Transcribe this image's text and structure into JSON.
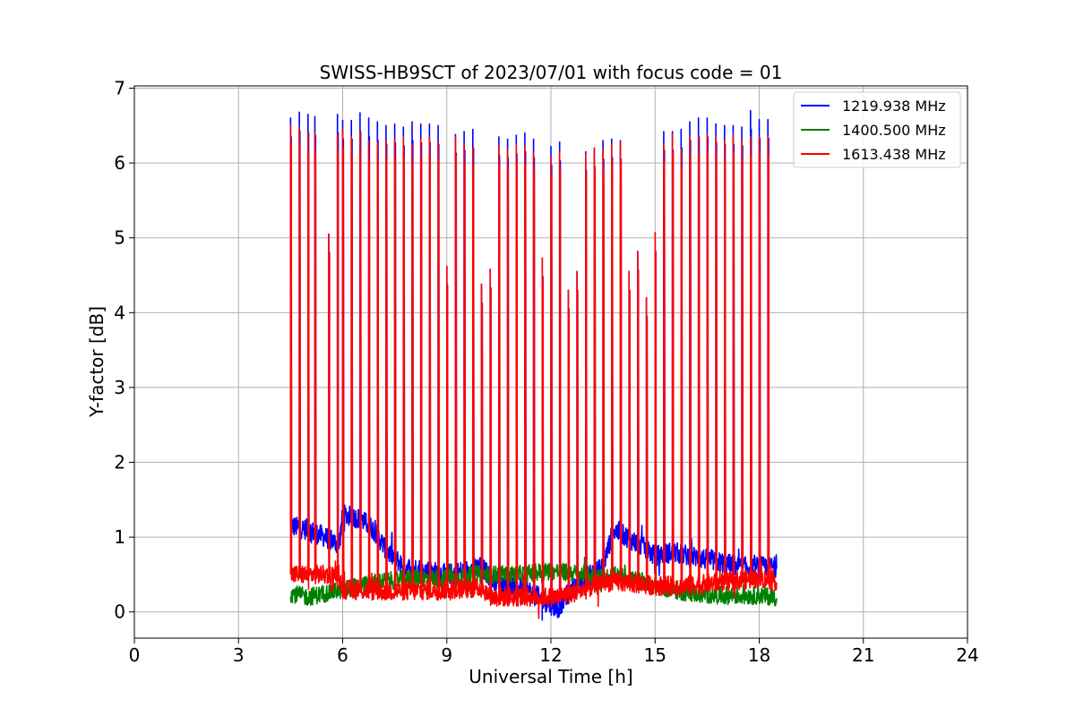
{
  "chart_data": {
    "type": "line",
    "title": "SWISS-HB9SCT of 2023/07/01 with focus code = 01",
    "xlabel": "Universal Time [h]",
    "ylabel": "Y-factor [dB]",
    "xlim": [
      0,
      24
    ],
    "ylim": [
      -0.35,
      7.03
    ],
    "x_ticks": [
      0,
      3,
      6,
      9,
      12,
      15,
      18,
      21,
      24
    ],
    "y_ticks": [
      0,
      1,
      2,
      3,
      4,
      5,
      6,
      7
    ],
    "grid": true,
    "legend_position": "top-right",
    "series": [
      {
        "name": "1219.938 MHz",
        "color": "#0000ff"
      },
      {
        "name": "1400.500 MHz",
        "color": "#008000"
      },
      {
        "name": "1613.438 MHz",
        "color": "#ff0000"
      }
    ],
    "data_time_range": [
      4.5,
      18.5
    ],
    "baseline_profiles": {
      "blue_x": [
        4.5,
        5.0,
        5.5,
        5.9,
        6.0,
        6.5,
        6.9,
        7.3,
        7.8,
        8.5,
        9.0,
        9.5,
        10.0,
        10.3,
        10.7,
        11.3,
        11.8,
        12.2,
        12.5,
        13.0,
        13.5,
        13.8,
        14.2,
        14.7,
        15.0,
        15.5,
        16.0,
        16.5,
        17.0,
        17.5,
        18.0,
        18.5
      ],
      "blue_y": [
        1.15,
        1.1,
        1.0,
        0.9,
        1.3,
        1.25,
        1.1,
        0.8,
        0.6,
        0.55,
        0.5,
        0.55,
        0.6,
        0.45,
        0.35,
        0.3,
        0.15,
        0.05,
        0.25,
        0.45,
        0.6,
        1.1,
        1.0,
        0.85,
        0.75,
        0.8,
        0.75,
        0.7,
        0.65,
        0.6,
        0.6,
        0.6
      ],
      "red_x": [
        4.5,
        5.0,
        5.9,
        6.0,
        7.0,
        8.0,
        9.0,
        10.0,
        10.3,
        11.0,
        11.8,
        12.2,
        13.0,
        13.5,
        14.0,
        15.0,
        16.0,
        17.0,
        18.0,
        18.5
      ],
      "red_y": [
        0.5,
        0.5,
        0.5,
        0.3,
        0.28,
        0.28,
        0.3,
        0.32,
        0.2,
        0.2,
        0.2,
        0.2,
        0.3,
        0.4,
        0.4,
        0.35,
        0.35,
        0.4,
        0.45,
        0.42
      ],
      "green_x": [
        4.5,
        5.0,
        6.0,
        7.0,
        8.0,
        9.0,
        10.0,
        11.0,
        12.0,
        13.0,
        13.5,
        14.0,
        15.0,
        16.0,
        17.0,
        18.0,
        18.5
      ],
      "green_y": [
        0.25,
        0.2,
        0.3,
        0.4,
        0.45,
        0.45,
        0.5,
        0.5,
        0.55,
        0.5,
        0.45,
        0.5,
        0.35,
        0.25,
        0.22,
        0.22,
        0.2
      ]
    },
    "spikes": {
      "x": [
        4.5,
        4.75,
        5.0,
        5.2,
        5.6,
        5.85,
        6.0,
        6.25,
        6.5,
        6.75,
        7.0,
        7.25,
        7.5,
        7.75,
        8.0,
        8.25,
        8.5,
        8.75,
        9.0,
        9.25,
        9.5,
        9.75,
        10.0,
        10.25,
        10.5,
        10.75,
        11.0,
        11.25,
        11.5,
        11.75,
        12.0,
        12.25,
        12.5,
        12.75,
        13.0,
        13.25,
        13.5,
        13.75,
        14.0,
        14.25,
        14.5,
        14.75,
        15.0,
        15.25,
        15.5,
        15.75,
        16.0,
        16.25,
        16.5,
        16.75,
        17.0,
        17.25,
        17.5,
        17.75,
        18.0,
        18.25
      ],
      "blue": [
        6.6,
        6.68,
        6.65,
        6.62,
        5.05,
        6.65,
        6.57,
        6.57,
        6.67,
        6.6,
        6.55,
        6.5,
        6.52,
        6.48,
        6.55,
        6.52,
        6.52,
        6.5,
        4.62,
        6.38,
        6.42,
        6.45,
        4.38,
        4.58,
        6.35,
        6.32,
        6.37,
        6.4,
        6.32,
        4.73,
        6.22,
        6.28,
        4.3,
        4.55,
        6.15,
        6.2,
        6.3,
        6.32,
        6.3,
        4.55,
        4.82,
        4.2,
        5.07,
        6.42,
        6.42,
        6.45,
        6.55,
        6.6,
        6.6,
        6.52,
        6.5,
        6.5,
        6.48,
        6.7,
        6.58,
        6.58
      ],
      "red": [
        6.5,
        6.48,
        6.4,
        6.4,
        5.05,
        6.38,
        6.45,
        6.35,
        6.42,
        6.3,
        6.28,
        6.3,
        6.32,
        6.35,
        6.25,
        6.32,
        6.35,
        6.28,
        4.62,
        6.35,
        6.25,
        6.2,
        4.38,
        4.58,
        6.22,
        6.18,
        6.25,
        6.22,
        6.15,
        4.73,
        6.08,
        6.15,
        4.3,
        4.55,
        6.12,
        6.2,
        6.18,
        6.25,
        6.28,
        4.55,
        4.82,
        4.2,
        5.07,
        6.25,
        6.38,
        6.18,
        6.35,
        6.35,
        6.38,
        6.35,
        6.3,
        6.38,
        6.3,
        6.35,
        6.35,
        6.35
      ]
    }
  }
}
